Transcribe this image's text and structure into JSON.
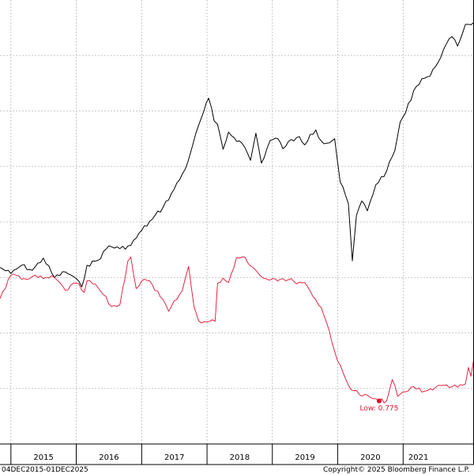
{
  "chart_data": {
    "type": "line",
    "x_range": [
      "2014-11-01",
      "2022-02-01"
    ],
    "x_ticks": [
      {
        "label": "2015",
        "date": "2015-01-01"
      },
      {
        "label": "2016",
        "date": "2016-01-01"
      },
      {
        "label": "2017",
        "date": "2017-01-01"
      },
      {
        "label": "2018",
        "date": "2018-01-01"
      },
      {
        "label": "2019",
        "date": "2019-01-01"
      },
      {
        "label": "2020",
        "date": "2020-01-01"
      },
      {
        "label": "2021",
        "date": "2021-01-01"
      }
    ],
    "ylim": [
      0,
      8
    ],
    "grid": true,
    "series": [
      {
        "color": "#000000",
        "points": [
          [
            "2014-11-01",
            3.18
          ],
          [
            "2015-01-01",
            3.07
          ],
          [
            "2015-03-01",
            3.22
          ],
          [
            "2015-05-01",
            3.13
          ],
          [
            "2015-07-01",
            3.35
          ],
          [
            "2015-09-01",
            3.0
          ],
          [
            "2015-11-01",
            3.1
          ],
          [
            "2015-12-15",
            3.02
          ],
          [
            "2016-02-01",
            2.83
          ],
          [
            "2016-03-01",
            3.22
          ],
          [
            "2016-05-01",
            3.31
          ],
          [
            "2016-07-01",
            3.57
          ],
          [
            "2016-09-01",
            3.52
          ],
          [
            "2016-11-01",
            3.58
          ],
          [
            "2017-01-01",
            3.85
          ],
          [
            "2017-03-01",
            4.05
          ],
          [
            "2017-05-01",
            4.27
          ],
          [
            "2017-07-01",
            4.59
          ],
          [
            "2017-09-01",
            4.95
          ],
          [
            "2017-10-15",
            5.41
          ],
          [
            "2017-12-01",
            5.88
          ],
          [
            "2018-01-10",
            6.23
          ],
          [
            "2018-02-10",
            5.82
          ],
          [
            "2018-03-01",
            5.76
          ],
          [
            "2018-04-01",
            5.31
          ],
          [
            "2018-05-01",
            5.62
          ],
          [
            "2018-06-01",
            5.52
          ],
          [
            "2018-07-01",
            5.46
          ],
          [
            "2018-08-01",
            5.34
          ],
          [
            "2018-09-01",
            5.11
          ],
          [
            "2018-10-01",
            5.6
          ],
          [
            "2018-11-01",
            5.06
          ],
          [
            "2018-12-20",
            5.47
          ],
          [
            "2019-02-01",
            5.5
          ],
          [
            "2019-03-01",
            5.32
          ],
          [
            "2019-04-01",
            5.45
          ],
          [
            "2019-05-01",
            5.46
          ],
          [
            "2019-06-01",
            5.54
          ],
          [
            "2019-07-01",
            5.39
          ],
          [
            "2019-08-01",
            5.58
          ],
          [
            "2019-09-01",
            5.66
          ],
          [
            "2019-10-01",
            5.46
          ],
          [
            "2019-11-01",
            5.42
          ],
          [
            "2019-12-15",
            5.5
          ],
          [
            "2020-01-15",
            4.72
          ],
          [
            "2020-03-01",
            4.33
          ],
          [
            "2020-03-23",
            3.3
          ],
          [
            "2020-04-15",
            4.12
          ],
          [
            "2020-05-15",
            4.38
          ],
          [
            "2020-06-15",
            4.2
          ],
          [
            "2020-08-01",
            4.67
          ],
          [
            "2020-10-01",
            4.92
          ],
          [
            "2020-11-15",
            5.28
          ],
          [
            "2020-12-15",
            5.8
          ],
          [
            "2021-01-15",
            5.97
          ],
          [
            "2021-03-01",
            6.37
          ],
          [
            "2021-04-15",
            6.58
          ],
          [
            "2021-06-01",
            6.63
          ],
          [
            "2021-07-01",
            6.8
          ],
          [
            "2021-08-15",
            7.11
          ],
          [
            "2021-10-01",
            7.34
          ],
          [
            "2021-11-01",
            7.17
          ],
          [
            "2021-12-15",
            7.56
          ],
          [
            "2022-02-01",
            7.6
          ]
        ]
      },
      {
        "color": "#e0102f",
        "points": [
          [
            "2014-11-01",
            2.62
          ],
          [
            "2015-01-01",
            3.04
          ],
          [
            "2015-03-01",
            2.97
          ],
          [
            "2015-05-01",
            3.02
          ],
          [
            "2015-07-01",
            2.98
          ],
          [
            "2015-09-01",
            3.0
          ],
          [
            "2015-11-01",
            2.77
          ],
          [
            "2016-01-01",
            2.9
          ],
          [
            "2016-02-15",
            2.73
          ],
          [
            "2016-03-01",
            2.94
          ],
          [
            "2016-05-01",
            2.82
          ],
          [
            "2016-07-15",
            2.48
          ],
          [
            "2016-09-01",
            2.51
          ],
          [
            "2016-10-15",
            3.29
          ],
          [
            "2016-11-01",
            3.37
          ],
          [
            "2016-12-01",
            2.8
          ],
          [
            "2017-01-15",
            2.97
          ],
          [
            "2017-03-01",
            2.87
          ],
          [
            "2017-04-15",
            2.65
          ],
          [
            "2017-06-01",
            2.39
          ],
          [
            "2017-08-15",
            2.76
          ],
          [
            "2017-09-20",
            3.2
          ],
          [
            "2017-10-20",
            2.48
          ],
          [
            "2017-11-15",
            2.22
          ],
          [
            "2018-01-01",
            2.2
          ],
          [
            "2018-02-15",
            2.21
          ],
          [
            "2018-03-01",
            2.9
          ],
          [
            "2018-04-01",
            2.99
          ],
          [
            "2018-05-01",
            2.91
          ],
          [
            "2018-06-15",
            3.36
          ],
          [
            "2018-08-01",
            3.37
          ],
          [
            "2018-09-15",
            3.18
          ],
          [
            "2018-11-01",
            3.01
          ],
          [
            "2019-01-01",
            2.98
          ],
          [
            "2019-03-01",
            2.98
          ],
          [
            "2019-05-01",
            2.93
          ],
          [
            "2019-07-01",
            2.91
          ],
          [
            "2019-08-01",
            2.75
          ],
          [
            "2019-09-01",
            2.6
          ],
          [
            "2019-10-01",
            2.46
          ],
          [
            "2019-11-15",
            2.04
          ],
          [
            "2020-01-01",
            1.49
          ],
          [
            "2020-03-01",
            1.06
          ],
          [
            "2020-05-01",
            0.89
          ],
          [
            "2020-07-01",
            0.84
          ],
          [
            "2020-08-20",
            0.775
          ],
          [
            "2020-10-01",
            0.78
          ],
          [
            "2020-11-01",
            1.16
          ],
          [
            "2020-12-01",
            0.86
          ],
          [
            "2021-01-15",
            0.94
          ],
          [
            "2021-03-01",
            1.03
          ],
          [
            "2021-05-01",
            0.95
          ],
          [
            "2021-07-01",
            1.02
          ],
          [
            "2021-09-01",
            1.06
          ],
          [
            "2021-11-01",
            1.02
          ],
          [
            "2021-12-15",
            1.08
          ],
          [
            "2022-01-01",
            1.38
          ],
          [
            "2022-01-15",
            1.22
          ],
          [
            "2022-02-01",
            1.55
          ]
        ]
      }
    ],
    "annotations": [
      {
        "text": "Low: 0.775",
        "x": "2020-08-20",
        "y": 0.775,
        "color": "#e0102f"
      }
    ]
  },
  "footer": {
    "date_range": "04DEC2015-01DEC2025",
    "copyright": "Copyright© 2025 Bloomberg Finance L.P."
  }
}
